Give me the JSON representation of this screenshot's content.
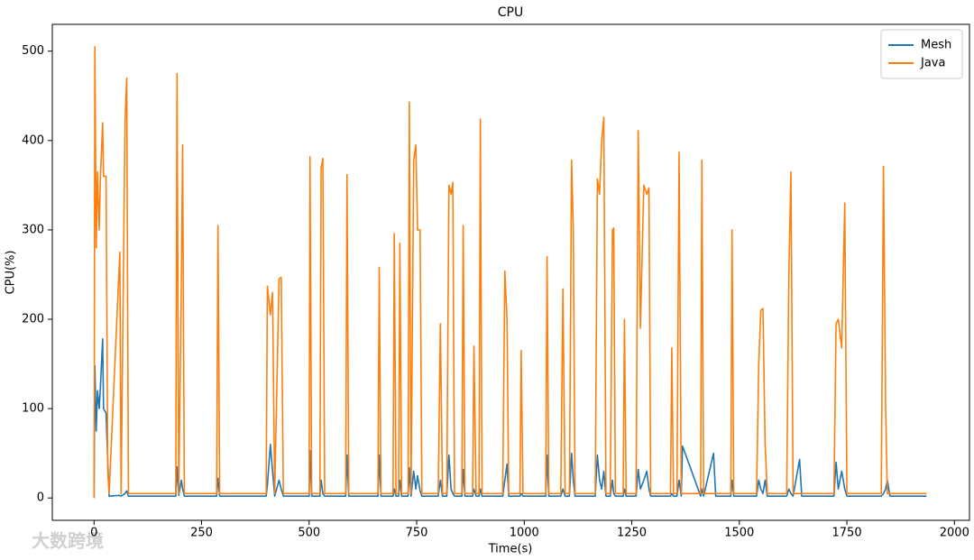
{
  "chart_data": {
    "type": "line",
    "title": "CPU",
    "x_label": "Time(s)",
    "y_label": "CPU(%)",
    "watermark": "大数跨境",
    "legend": "upper right",
    "grid": false,
    "xlim": [
      -97,
      2035
    ],
    "xticks": [
      0,
      250,
      500,
      750,
      1000,
      1250,
      1500,
      1750,
      2000
    ],
    "ylim": [
      -25,
      530
    ],
    "yticks": [
      0,
      100,
      200,
      300,
      400,
      500
    ],
    "x": [
      0,
      2,
      5,
      8,
      12,
      15,
      20,
      22,
      28,
      32,
      35,
      60,
      63,
      72,
      76,
      80,
      190,
      193,
      197,
      203,
      206,
      210,
      285,
      288,
      292,
      400,
      403,
      410,
      415,
      420,
      430,
      435,
      440,
      500,
      502,
      506,
      525,
      528,
      532,
      536,
      585,
      588,
      592,
      660,
      663,
      667,
      695,
      698,
      702,
      708,
      711,
      715,
      730,
      733,
      737,
      743,
      748,
      752,
      758,
      762,
      800,
      805,
      810,
      820,
      825,
      830,
      834,
      838,
      855,
      858,
      862,
      880,
      883,
      888,
      895,
      898,
      902,
      950,
      955,
      960,
      964,
      990,
      993,
      997,
      1050,
      1053,
      1057,
      1085,
      1090,
      1095,
      1105,
      1110,
      1114,
      1118,
      1165,
      1170,
      1175,
      1180,
      1185,
      1190,
      1200,
      1205,
      1208,
      1212,
      1230,
      1233,
      1237,
      1260,
      1265,
      1270,
      1278,
      1285,
      1290,
      1294,
      1340,
      1343,
      1347,
      1355,
      1360,
      1365,
      1368,
      1410,
      1413,
      1417,
      1440,
      1445,
      1480,
      1483,
      1487,
      1540,
      1545,
      1550,
      1555,
      1560,
      1565,
      1610,
      1615,
      1620,
      1625,
      1640,
      1645,
      1720,
      1725,
      1730,
      1738,
      1745,
      1750,
      1830,
      1835,
      1840,
      1844,
      1850,
      1935
    ],
    "series": [
      {
        "name": "Mesh",
        "color": "#1f77b4",
        "values": [
          0,
          148,
          75,
          120,
          100,
          125,
          178,
          100,
          95,
          40,
          2,
          3,
          2,
          5,
          8,
          2,
          2,
          35,
          3,
          20,
          10,
          2,
          2,
          22,
          2,
          2,
          15,
          60,
          30,
          2,
          20,
          10,
          2,
          2,
          53,
          2,
          2,
          20,
          5,
          2,
          2,
          48,
          2,
          2,
          48,
          2,
          2,
          10,
          2,
          2,
          20,
          2,
          2,
          34,
          2,
          30,
          10,
          25,
          8,
          2,
          2,
          20,
          2,
          2,
          48,
          10,
          5,
          2,
          2,
          32,
          2,
          2,
          10,
          2,
          2,
          10,
          2,
          2,
          20,
          38,
          2,
          2,
          5,
          2,
          2,
          48,
          2,
          2,
          10,
          2,
          2,
          50,
          20,
          2,
          2,
          48,
          20,
          10,
          30,
          2,
          2,
          20,
          5,
          2,
          2,
          10,
          2,
          2,
          32,
          10,
          20,
          30,
          10,
          2,
          2,
          5,
          2,
          2,
          20,
          2,
          58,
          2,
          10,
          2,
          50,
          2,
          2,
          20,
          2,
          2,
          20,
          10,
          5,
          20,
          2,
          2,
          10,
          5,
          2,
          43,
          2,
          2,
          40,
          10,
          30,
          10,
          2,
          2,
          5,
          10,
          20,
          2,
          2
        ]
      },
      {
        "name": "Java",
        "color": "#ff7f0e",
        "values": [
          0,
          505,
          280,
          365,
          300,
          360,
          420,
          360,
          360,
          30,
          5,
          275,
          5,
          420,
          470,
          5,
          5,
          475,
          5,
          240,
          395,
          5,
          5,
          305,
          5,
          5,
          237,
          205,
          230,
          5,
          245,
          247,
          5,
          5,
          382,
          5,
          5,
          370,
          380,
          5,
          5,
          362,
          5,
          5,
          258,
          5,
          5,
          296,
          5,
          5,
          285,
          5,
          5,
          443,
          5,
          378,
          395,
          300,
          300,
          5,
          5,
          195,
          5,
          5,
          350,
          340,
          353,
          5,
          5,
          305,
          5,
          5,
          170,
          5,
          5,
          424,
          5,
          5,
          254,
          200,
          5,
          5,
          165,
          5,
          5,
          270,
          5,
          5,
          234,
          5,
          5,
          378,
          302,
          5,
          5,
          357,
          340,
          400,
          426,
          5,
          5,
          300,
          302,
          5,
          5,
          200,
          5,
          5,
          411,
          190,
          350,
          340,
          347,
          5,
          5,
          168,
          5,
          5,
          387,
          5,
          5,
          5,
          378,
          5,
          5,
          5,
          5,
          300,
          5,
          5,
          150,
          210,
          212,
          60,
          5,
          5,
          250,
          365,
          5,
          5,
          5,
          5,
          195,
          200,
          168,
          330,
          5,
          5,
          371,
          103,
          5,
          5,
          5
        ]
      }
    ]
  }
}
